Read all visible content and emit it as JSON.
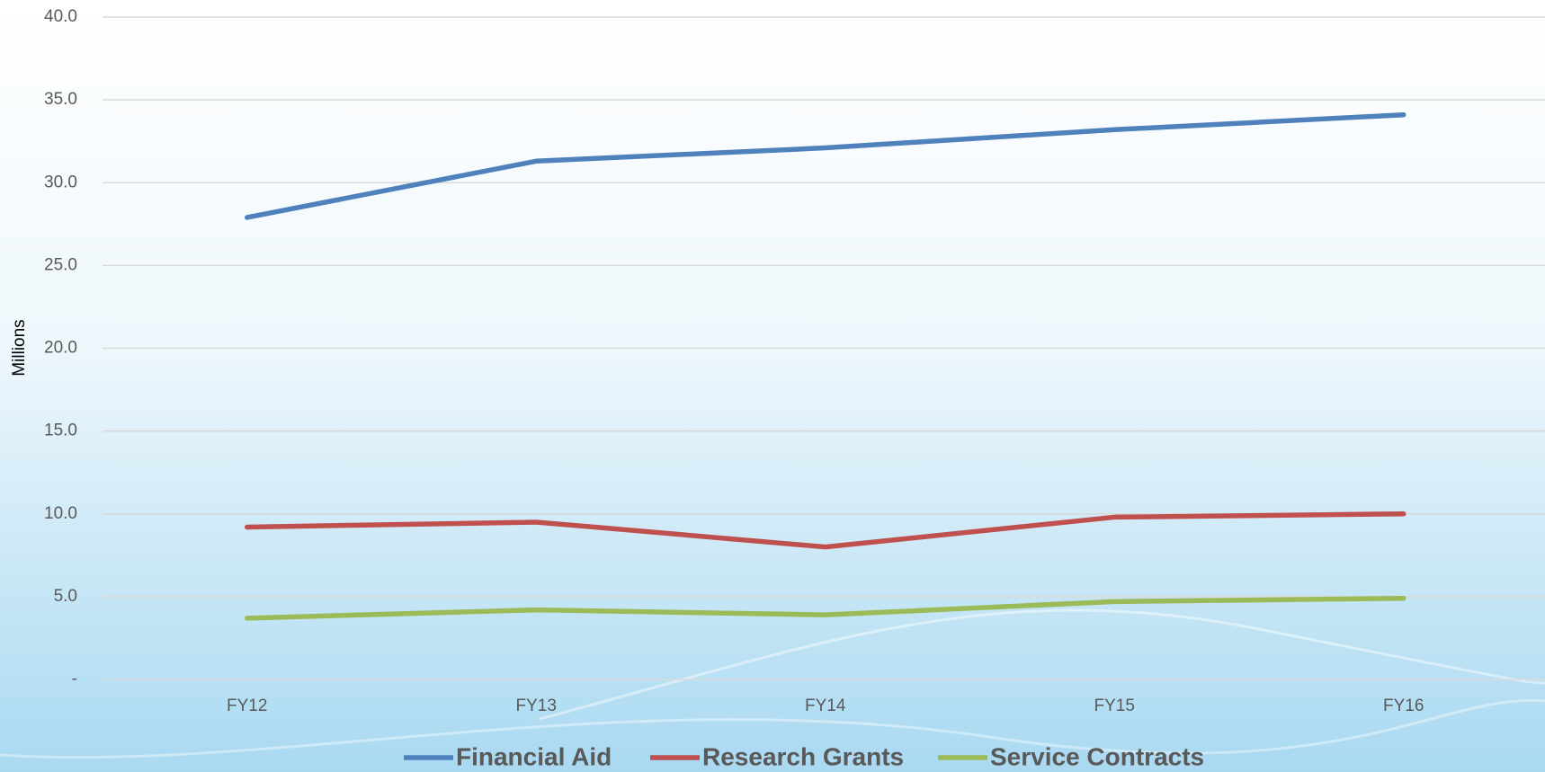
{
  "chart_data": {
    "type": "line",
    "y_label": "Millions",
    "categories": [
      "FY12",
      "FY13",
      "FY14",
      "FY15",
      "FY16"
    ],
    "series": [
      {
        "name": "Financial Aid",
        "color": "#4f81bd",
        "values": [
          27.9,
          31.3,
          32.1,
          33.2,
          34.1
        ]
      },
      {
        "name": "Research Grants",
        "color": "#c0504d",
        "values": [
          9.2,
          9.5,
          8.0,
          9.8,
          10.0
        ]
      },
      {
        "name": "Service Contracts",
        "color": "#9bbb59",
        "values": [
          3.7,
          4.2,
          3.9,
          4.7,
          4.9
        ]
      }
    ],
    "ylim": [
      0,
      40
    ],
    "yticks": [
      {
        "value": 0,
        "label": "-"
      },
      {
        "value": 5,
        "label": "5.0"
      },
      {
        "value": 10,
        "label": "10.0"
      },
      {
        "value": 15,
        "label": "15.0"
      },
      {
        "value": 20,
        "label": "20.0"
      },
      {
        "value": 25,
        "label": "25.0"
      },
      {
        "value": 30,
        "label": "30.0"
      },
      {
        "value": 35,
        "label": "35.0"
      },
      {
        "value": 40,
        "label": "40.0"
      }
    ],
    "grid": true,
    "legend": "bottom"
  }
}
